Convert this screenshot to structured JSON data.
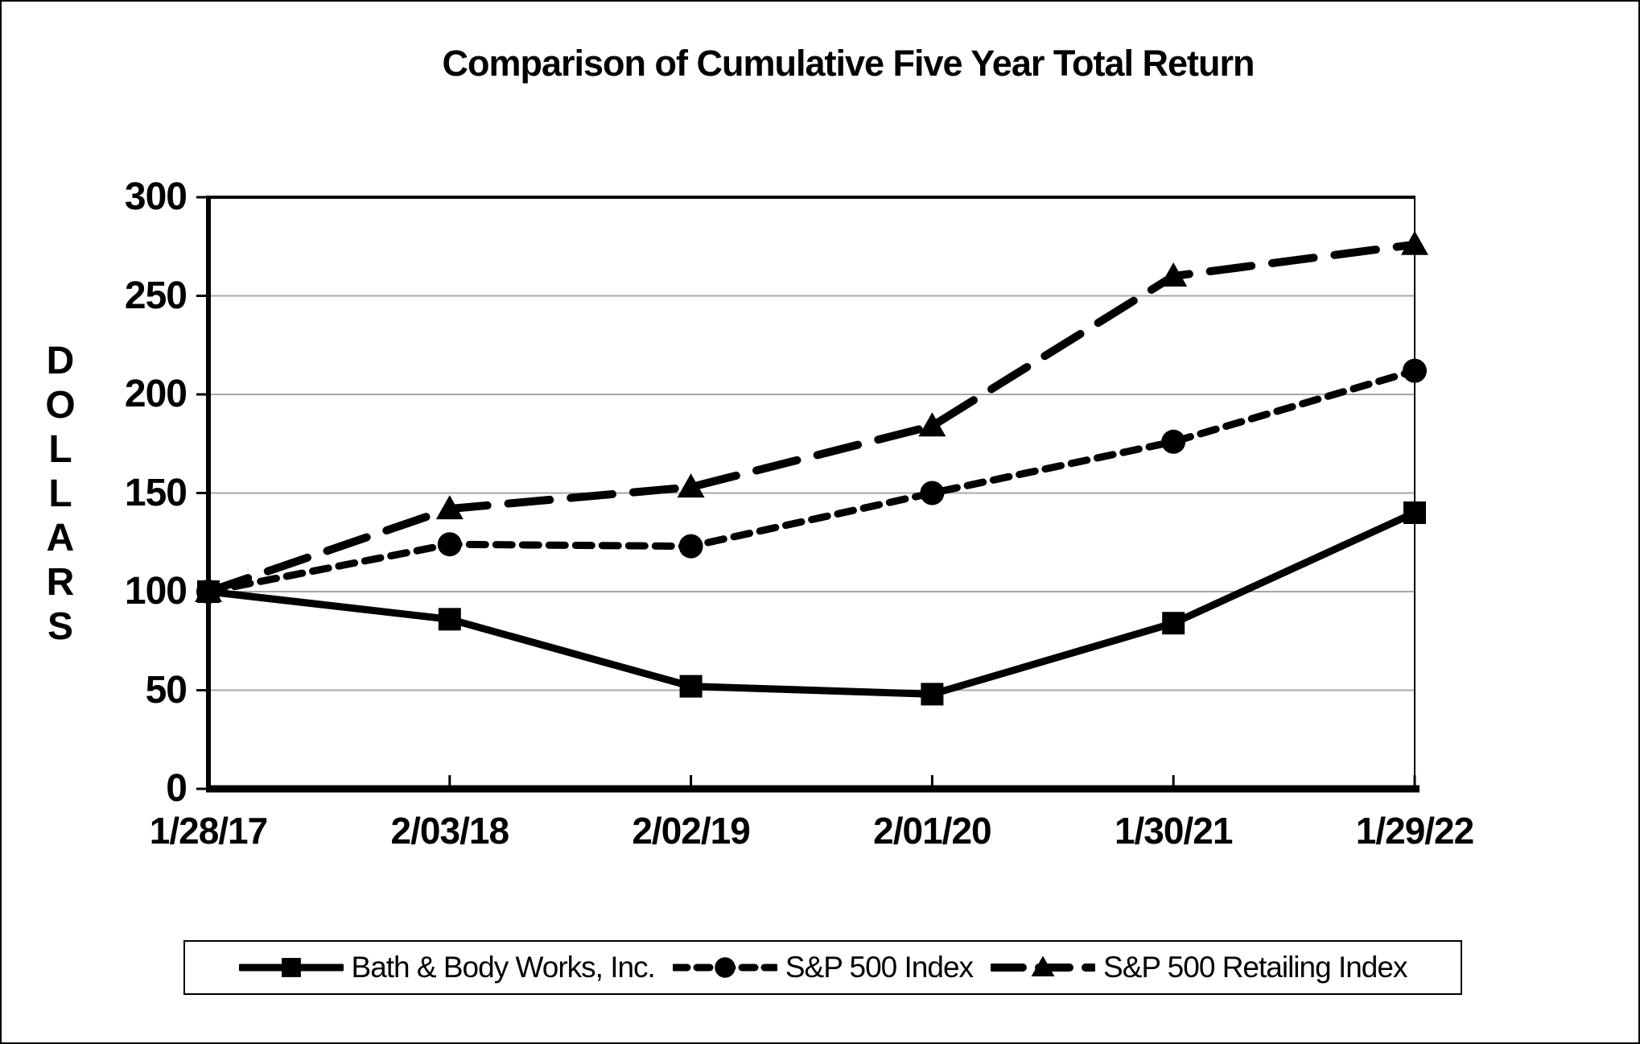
{
  "title": "Comparison of Cumulative Five Year Total Return",
  "chart_data": {
    "type": "line",
    "title": "Comparison of Cumulative Five Year Total Return",
    "xlabel": "",
    "ylabel": "DOLLARS",
    "ylim": [
      0,
      300
    ],
    "y_ticks": [
      0,
      50,
      100,
      150,
      200,
      250,
      300
    ],
    "grid": true,
    "legend_position": "bottom",
    "categories": [
      "1/28/17",
      "2/03/18",
      "2/02/19",
      "2/01/20",
      "1/30/21",
      "1/29/22"
    ],
    "series": [
      {
        "name": "Bath & Body Works, Inc.",
        "marker": "square",
        "line_style": "solid",
        "values": [
          100,
          86,
          52,
          48,
          84,
          140
        ]
      },
      {
        "name": "S&P 500 Index",
        "marker": "circle",
        "line_style": "dotted",
        "values": [
          100,
          124,
          123,
          150,
          176,
          212
        ]
      },
      {
        "name": "S&P 500 Retailing Index",
        "marker": "triangle",
        "line_style": "dashed",
        "values": [
          100,
          142,
          153,
          184,
          260,
          276
        ]
      }
    ],
    "colors": {
      "series": "#000000",
      "gridline": "#a8a8a8",
      "background": "#ffffff",
      "border": "#000000"
    }
  }
}
